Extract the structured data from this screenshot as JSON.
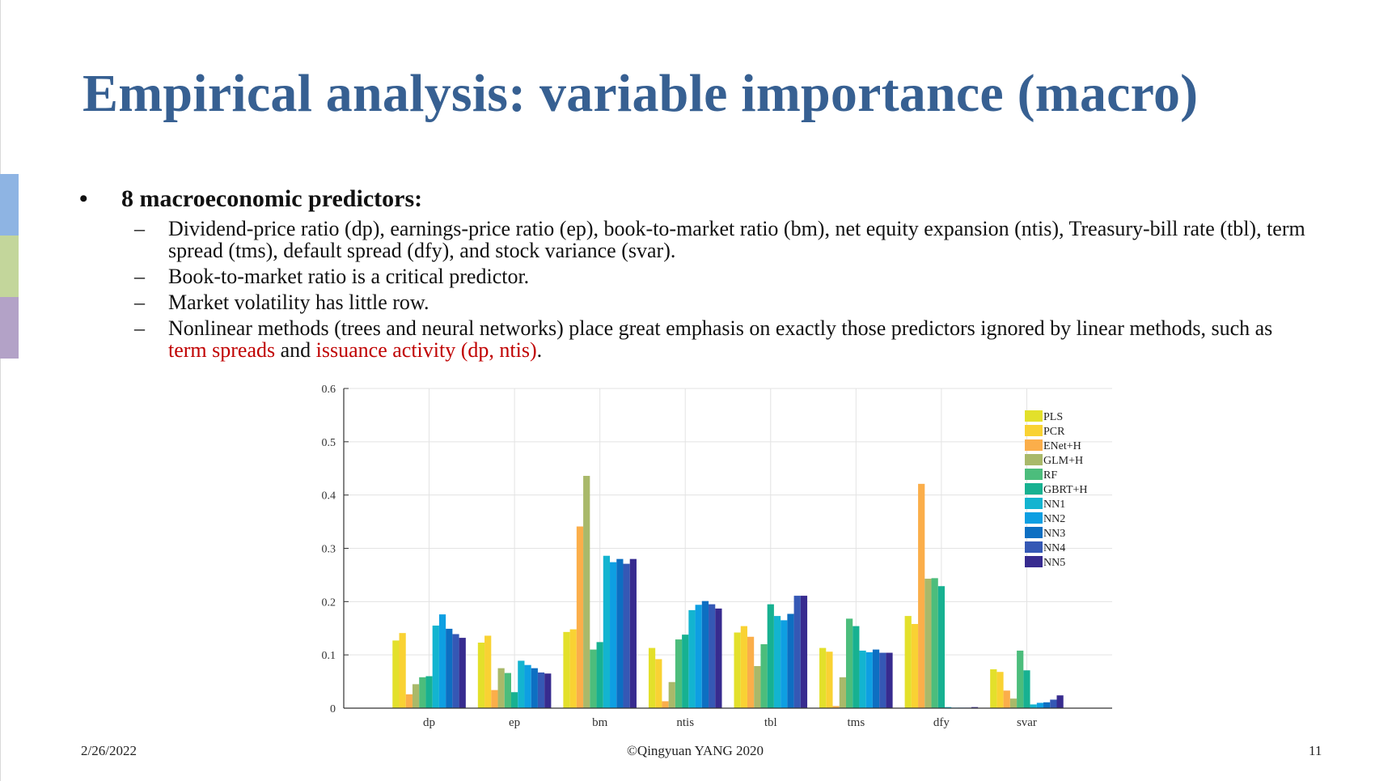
{
  "slide": {
    "title": "Empirical analysis: variable importance (macro)",
    "bullet_main": "8 macroeconomic predictors:",
    "sub_bullets": [
      "Dividend-price ratio (dp), earnings-price ratio (ep), book-to-market ratio (bm), net equity expansion (ntis), Treasury-bill rate (tbl), term spread (tms), default spread (dfy), and stock variance (svar).",
      "Book-to-market ratio is a critical predictor.",
      "Market volatility has little row.",
      "Nonlinear methods (trees and neural networks) place great emphasis on exactly those predictors ignored by linear methods, such as "
    ],
    "sub4_red1": "term spreads",
    "sub4_and": " and ",
    "sub4_red2": "issuance activity (dp, ntis)",
    "sub4_end": ".",
    "bullet_glyph": "•",
    "dash_glyph": "–"
  },
  "footer": {
    "date": "2/26/2022",
    "copyright": "©Qingyuan YANG 2020",
    "page": "11"
  },
  "chart_data": {
    "type": "bar",
    "title": "",
    "xlabel": "",
    "ylabel": "",
    "ylim": [
      0,
      0.6
    ],
    "yticks": [
      "0",
      "0.1",
      "0.2",
      "0.3",
      "0.4",
      "0.5",
      "0.6"
    ],
    "grid": true,
    "legend_position": "top-right",
    "categories": [
      "dp",
      "ep",
      "bm",
      "ntis",
      "tbl",
      "tms",
      "dfy",
      "svar"
    ],
    "series": [
      {
        "name": "PLS",
        "color": "#e3e02b",
        "values": [
          0.127,
          0.123,
          0.143,
          0.113,
          0.142,
          0.113,
          0.173,
          0.073
        ]
      },
      {
        "name": "PCR",
        "color": "#f9d233",
        "values": [
          0.141,
          0.136,
          0.148,
          0.092,
          0.154,
          0.106,
          0.158,
          0.068
        ]
      },
      {
        "name": "ENet+H",
        "color": "#fbae4a",
        "values": [
          0.026,
          0.034,
          0.341,
          0.013,
          0.134,
          0.004,
          0.421,
          0.033
        ]
      },
      {
        "name": "GLM+H",
        "color": "#a9b96a",
        "values": [
          0.045,
          0.075,
          0.436,
          0.049,
          0.079,
          0.058,
          0.243,
          0.018
        ]
      },
      {
        "name": "RF",
        "color": "#4cbd7c",
        "values": [
          0.058,
          0.066,
          0.11,
          0.129,
          0.12,
          0.168,
          0.244,
          0.108
        ]
      },
      {
        "name": "GBRT+H",
        "color": "#17b191",
        "values": [
          0.06,
          0.03,
          0.124,
          0.138,
          0.195,
          0.154,
          0.229,
          0.071
        ]
      },
      {
        "name": "NN1",
        "color": "#13b4d0",
        "values": [
          0.155,
          0.089,
          0.286,
          0.184,
          0.173,
          0.108,
          0.002,
          0.007
        ]
      },
      {
        "name": "NN2",
        "color": "#0e9fe2",
        "values": [
          0.176,
          0.081,
          0.274,
          0.194,
          0.165,
          0.105,
          0.001,
          0.01
        ]
      },
      {
        "name": "NN3",
        "color": "#0d6fc2",
        "values": [
          0.149,
          0.075,
          0.28,
          0.201,
          0.177,
          0.11,
          0.001,
          0.011
        ]
      },
      {
        "name": "NN4",
        "color": "#3558b5",
        "values": [
          0.139,
          0.067,
          0.271,
          0.195,
          0.211,
          0.104,
          0.001,
          0.016
        ]
      },
      {
        "name": "NN5",
        "color": "#372b8f",
        "values": [
          0.132,
          0.065,
          0.28,
          0.187,
          0.211,
          0.104,
          0.002,
          0.024
        ]
      }
    ]
  }
}
